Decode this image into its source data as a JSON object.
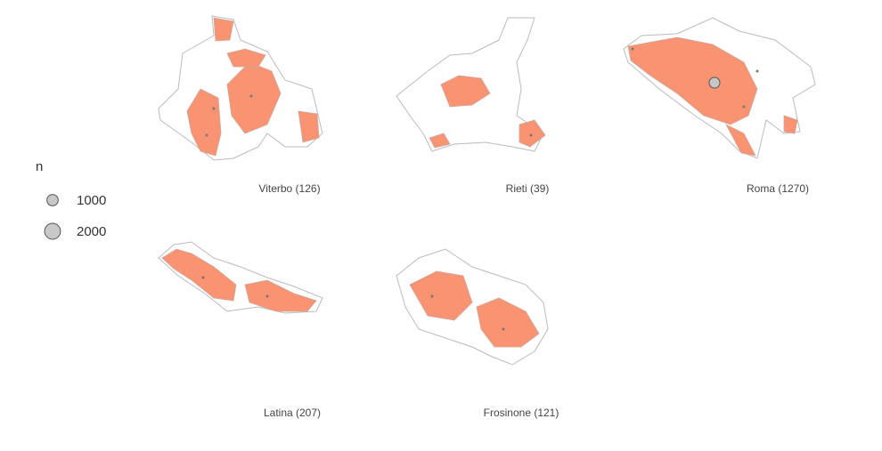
{
  "legend": {
    "title": "n",
    "entries": [
      1000,
      2000
    ]
  },
  "panels": [
    {
      "label": "Viterbo (126)"
    },
    {
      "label": "Rieti (39)"
    },
    {
      "label": "Roma (1270)"
    },
    {
      "label": "Latina (207)"
    },
    {
      "label": "Frosinone (121)"
    }
  ]
}
